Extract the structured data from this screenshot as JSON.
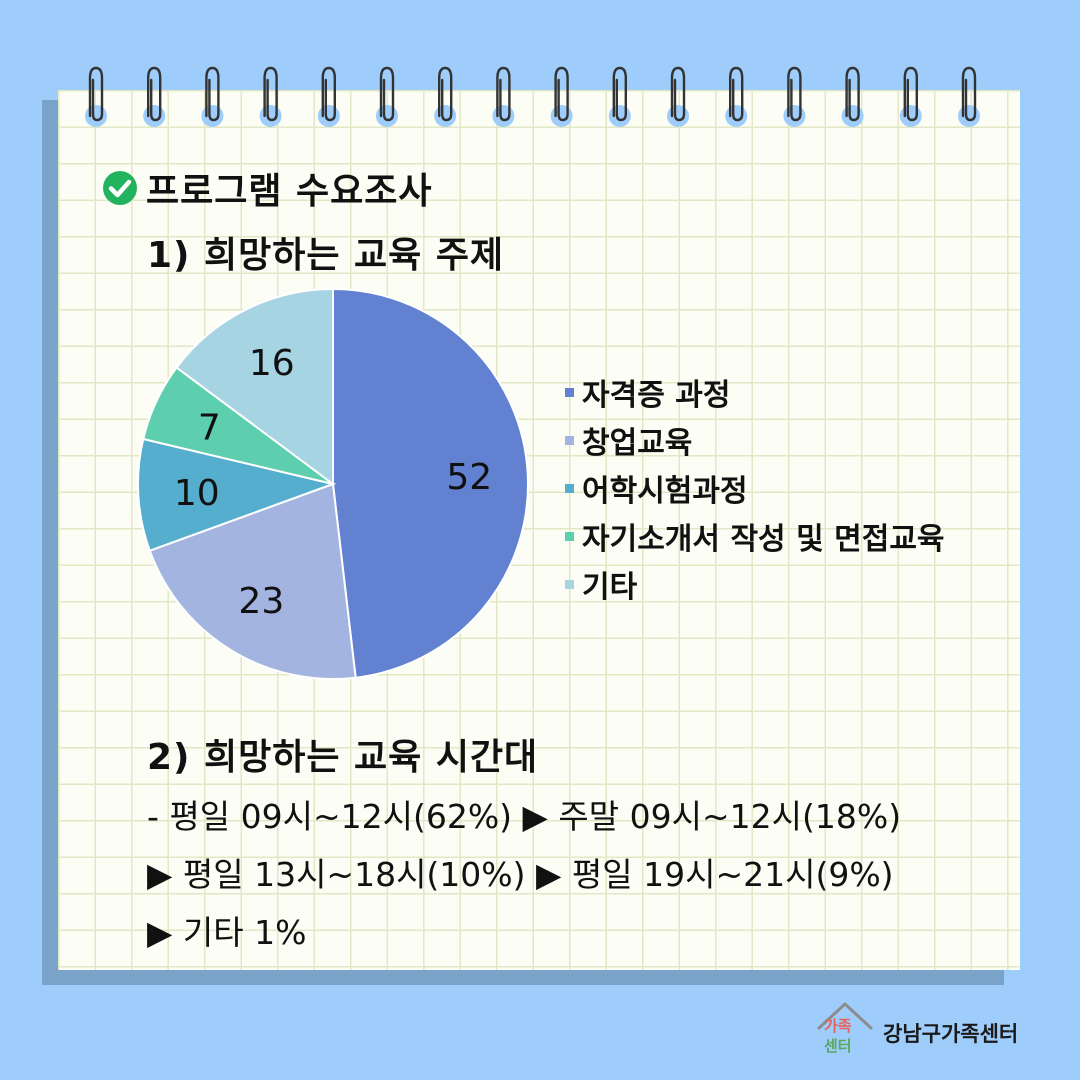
{
  "header": {
    "title": "프로그램 수요조사",
    "section1": "1) 희망하는 교육 주제",
    "section2": "2) 희망하는 교육 시간대"
  },
  "time_lines": [
    "- 평일 09시~12시(62%) ▶ 주말 09시~12시(18%)",
    "▶ 평일 13시~18시(10%) ▶ 평일 19시~21시(9%)",
    "▶ 기타 1%"
  ],
  "footer": {
    "org_name": "강남구가족센터",
    "logo_text_top": "가족",
    "logo_text_bottom": "센터"
  },
  "colors": {
    "background": "#9ecdfc",
    "check": "#22b35e"
  },
  "chart_data": {
    "type": "pie",
    "categories": [
      "자격증 과정",
      "창업교육",
      "어학시험과정",
      "자기소개서 작성 및 면접교육",
      "기타"
    ],
    "values": [
      52,
      23,
      10,
      7,
      16
    ],
    "colors": [
      "#6281d0",
      "#a3b4e0",
      "#55aece",
      "#5dcfaf",
      "#a7d4e3"
    ],
    "legend_position": "right"
  }
}
